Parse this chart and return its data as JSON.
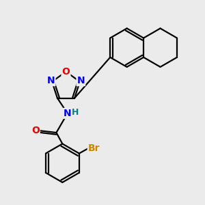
{
  "bg_color": "#ebebeb",
  "bond_color": "#000000",
  "bond_width": 1.6,
  "atom_colors": {
    "N": "#0000ee",
    "O": "#ee0000",
    "Br": "#cc8800",
    "H": "#008080"
  },
  "font_size_atom": 10,
  "font_size_h": 9,
  "font_size_br": 10
}
